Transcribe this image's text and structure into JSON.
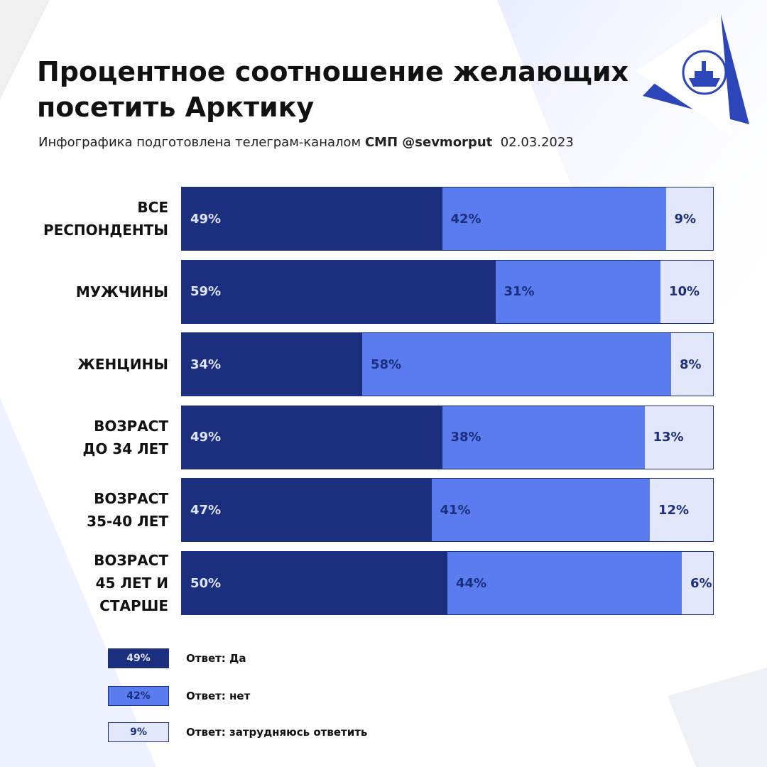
{
  "chart_data": {
    "type": "stacked-bar",
    "title": "Процентное соотношение желающих посетить Арктику",
    "subtitle": "Инфографика подготовлена телеграм-каналом",
    "source": "СМП @sevmorput",
    "date": "02.03.2023",
    "categories": [
      "ВСЕ\nРЕСПОНДЕНТЫ",
      "МУЖЧИНЫ",
      "ЖЕНЦИНЫ",
      "ВОЗРАСТ\nДО 34 ЛЕТ",
      "ВОЗРАСТ\n35-40 ЛЕТ",
      "ВОЗРАСТ\n45 ЛЕТ И\nСТАРШЕ"
    ],
    "xlim": [
      0,
      100
    ],
    "series": [
      {
        "name": "Ответ: Да",
        "color": "#1c2f7e",
        "values": [
          49,
          59,
          34,
          49,
          47,
          50
        ],
        "value_labels": [
          "49%",
          "59%",
          "34%",
          "49%",
          "47%",
          "50%"
        ]
      },
      {
        "name": "Ответ: нет",
        "color": "#5a7cef",
        "values": [
          42,
          31,
          58,
          38,
          41,
          44
        ],
        "value_labels": [
          "42%",
          "31%",
          "58%",
          "38%",
          "41%",
          "44%"
        ]
      },
      {
        "name": "Ответ: затрудняюсь ответить",
        "color": "#e3e7fb",
        "values": [
          9,
          10,
          8,
          13,
          12,
          6
        ],
        "value_labels": [
          "9%",
          "10%",
          "8%",
          "13%",
          "12%",
          "6%"
        ]
      }
    ]
  }
}
